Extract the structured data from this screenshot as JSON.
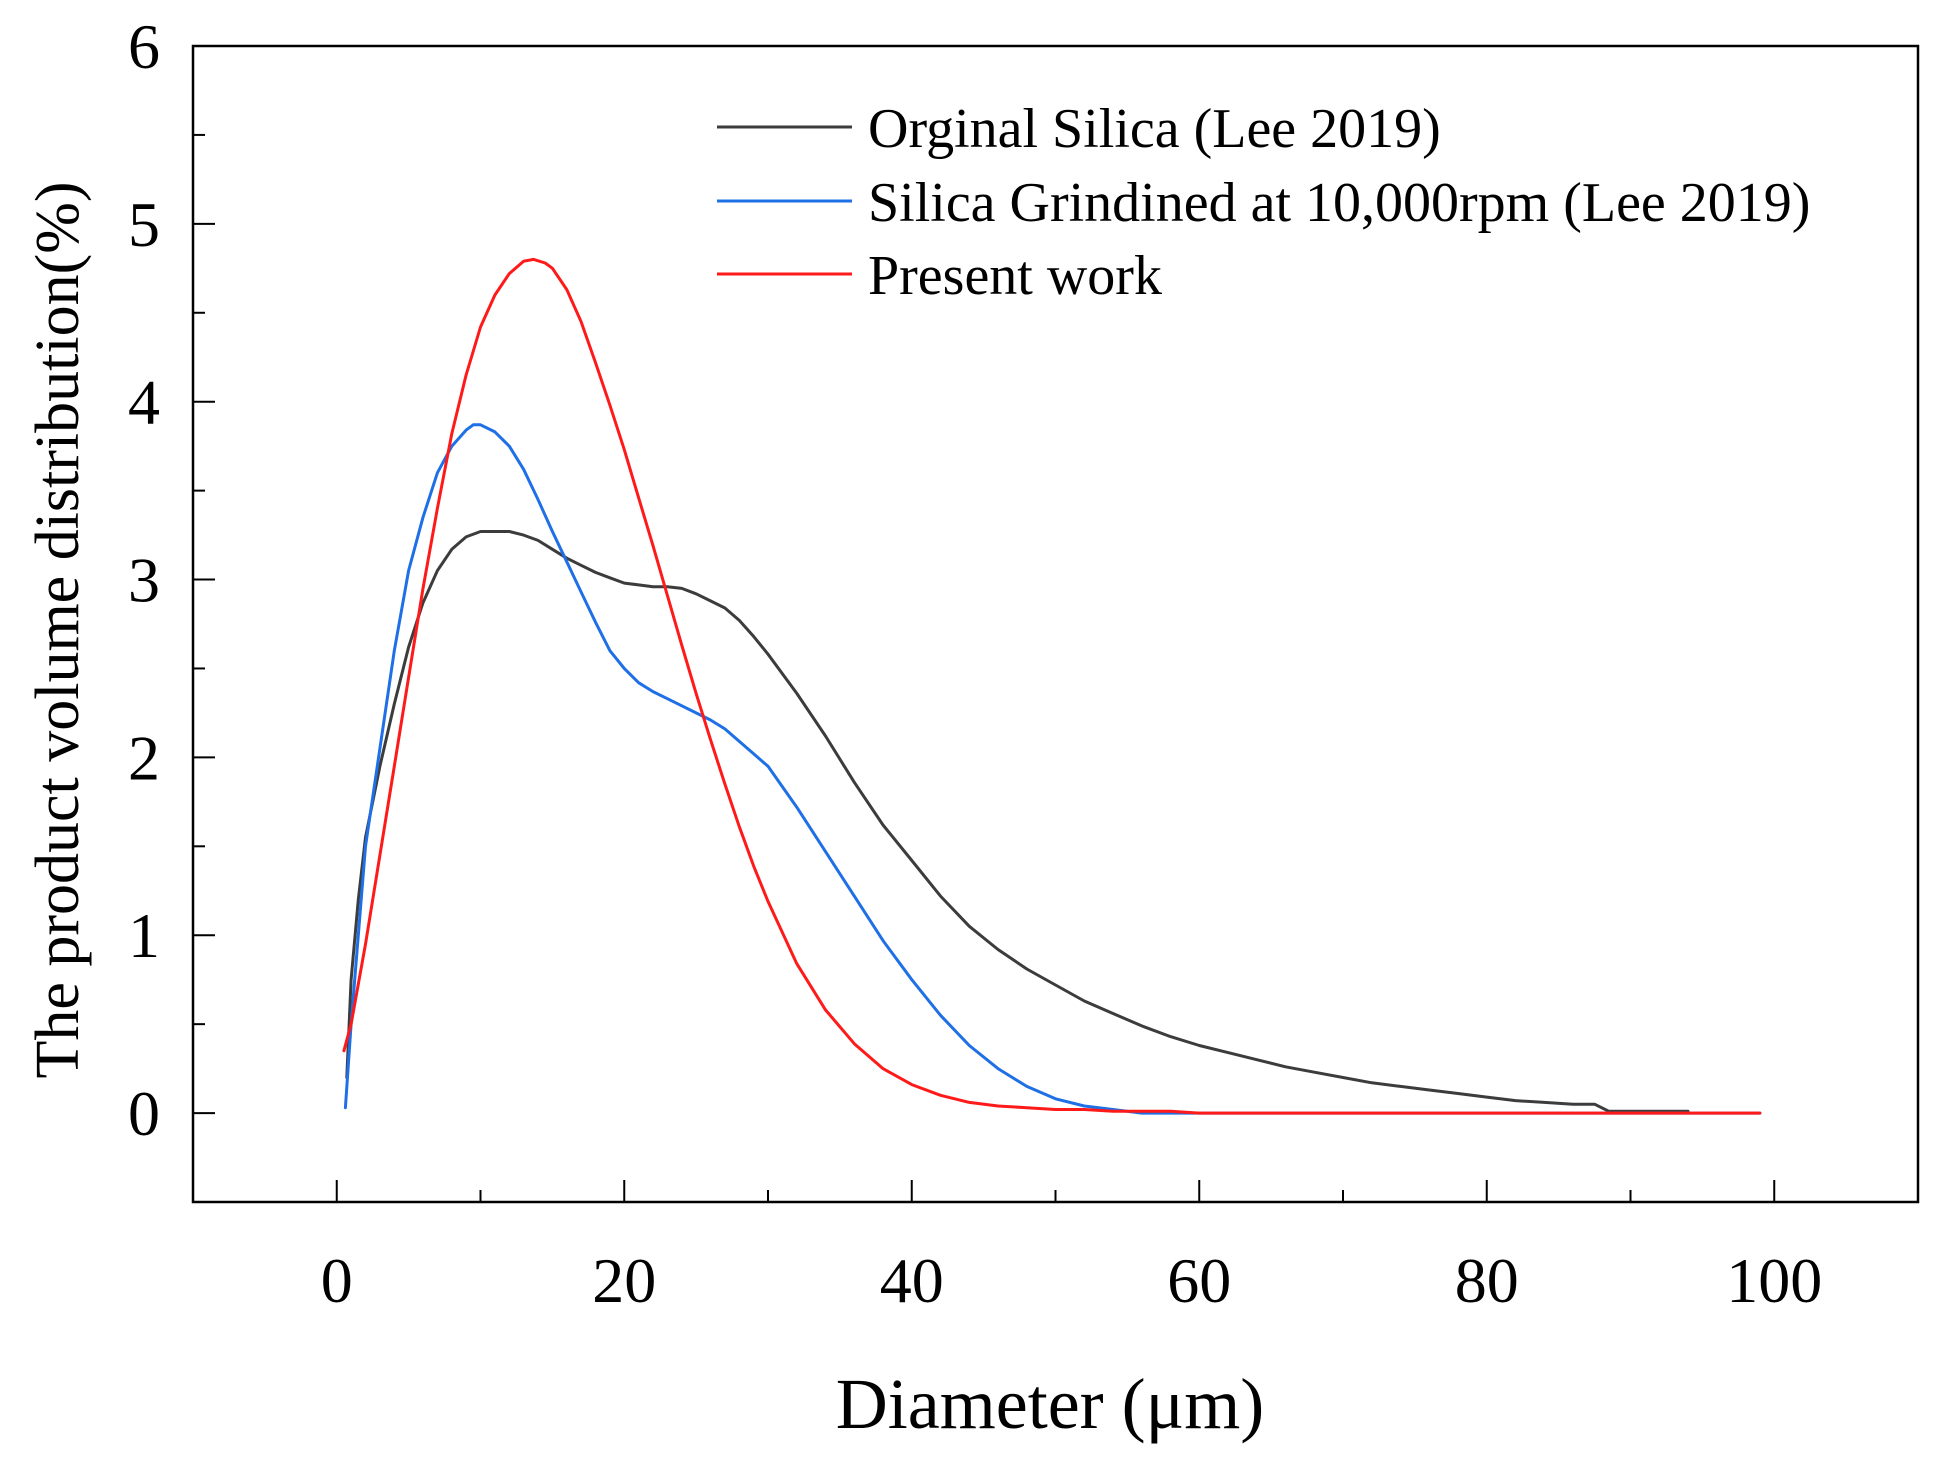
{
  "chart_data": {
    "type": "line",
    "title": "",
    "xlabel": "Diameter (μm)",
    "ylabel": "The product volume distribution(%)",
    "xlim": [
      -10,
      110
    ],
    "ylim": [
      -0.5,
      6
    ],
    "xticks": [
      0,
      20,
      40,
      60,
      80,
      100
    ],
    "xtick_labels": [
      "0",
      "20",
      "40",
      "60",
      "80",
      "100"
    ],
    "yticks": [
      0,
      1,
      2,
      3,
      4,
      5,
      6
    ],
    "ytick_labels": [
      "0",
      "1",
      "2",
      "3",
      "4",
      "5",
      "6"
    ],
    "grid": false,
    "legend_position": "top-right",
    "series": [
      {
        "name": "Orginal Silica (Lee 2019)",
        "color": "#3c3c3c",
        "x": [
          0.7,
          1.0,
          1.5,
          2,
          3,
          4,
          5,
          6,
          7,
          8,
          9,
          10,
          11,
          12,
          13,
          14,
          15,
          16,
          17,
          18,
          19,
          20,
          21,
          22,
          23,
          24,
          25,
          26,
          27,
          28,
          29,
          30,
          32,
          34,
          36,
          38,
          40,
          42,
          44,
          46,
          48,
          50,
          52,
          54,
          56,
          58,
          60,
          62,
          64,
          66,
          68,
          70,
          72,
          74,
          76,
          78,
          80,
          82,
          84,
          86,
          87.5,
          88.5,
          90,
          92,
          94
        ],
        "y": [
          0.2,
          0.75,
          1.2,
          1.55,
          1.95,
          2.3,
          2.62,
          2.87,
          3.05,
          3.17,
          3.24,
          3.27,
          3.27,
          3.27,
          3.25,
          3.22,
          3.17,
          3.12,
          3.08,
          3.04,
          3.01,
          2.98,
          2.97,
          2.96,
          2.96,
          2.95,
          2.92,
          2.88,
          2.84,
          2.77,
          2.68,
          2.58,
          2.36,
          2.12,
          1.86,
          1.62,
          1.42,
          1.22,
          1.05,
          0.92,
          0.81,
          0.72,
          0.63,
          0.56,
          0.49,
          0.43,
          0.38,
          0.34,
          0.3,
          0.26,
          0.23,
          0.2,
          0.17,
          0.15,
          0.13,
          0.11,
          0.09,
          0.07,
          0.06,
          0.05,
          0.05,
          0.01,
          0.01,
          0.01,
          0.01
        ]
      },
      {
        "name": "Silica Grindined at 10,000rpm (Lee 2019)",
        "color": "#1f6fe6",
        "x": [
          0.6,
          1.0,
          1.5,
          2,
          3,
          4,
          5,
          6,
          7,
          8,
          9,
          9.5,
          10,
          11,
          12,
          13,
          14,
          15,
          16,
          17,
          18,
          19,
          20,
          21,
          22,
          23,
          24,
          25,
          26,
          27,
          28,
          29,
          30,
          32,
          34,
          36,
          38,
          40,
          42,
          44,
          46,
          48,
          50,
          52,
          54,
          56,
          60,
          70,
          80,
          90,
          99
        ],
        "y": [
          0.03,
          0.5,
          1.0,
          1.5,
          2.05,
          2.6,
          3.05,
          3.35,
          3.6,
          3.75,
          3.84,
          3.87,
          3.87,
          3.83,
          3.75,
          3.62,
          3.45,
          3.27,
          3.1,
          2.93,
          2.76,
          2.6,
          2.5,
          2.42,
          2.37,
          2.33,
          2.29,
          2.25,
          2.21,
          2.16,
          2.09,
          2.02,
          1.95,
          1.72,
          1.47,
          1.22,
          0.97,
          0.75,
          0.55,
          0.38,
          0.25,
          0.15,
          0.08,
          0.04,
          0.02,
          0.0,
          0.0,
          0.0,
          0.0,
          0.0,
          0.0
        ]
      },
      {
        "name": "Present work",
        "color": "#ff1a1a",
        "x": [
          0.5,
          1,
          2,
          3,
          4,
          5,
          6,
          7,
          8,
          9,
          10,
          11,
          12,
          13,
          13.7,
          14.5,
          15,
          16,
          17,
          18,
          19,
          20,
          21,
          22,
          23,
          24,
          25,
          26,
          27,
          28,
          29,
          30,
          32,
          34,
          36,
          38,
          40,
          42,
          44,
          46,
          48,
          50,
          52,
          54,
          56,
          58,
          60,
          65,
          70,
          80,
          90,
          99
        ],
        "y": [
          0.35,
          0.5,
          0.95,
          1.45,
          1.95,
          2.45,
          2.95,
          3.4,
          3.82,
          4.15,
          4.42,
          4.6,
          4.72,
          4.79,
          4.8,
          4.78,
          4.75,
          4.63,
          4.45,
          4.22,
          3.98,
          3.73,
          3.46,
          3.19,
          2.91,
          2.63,
          2.36,
          2.1,
          1.85,
          1.61,
          1.39,
          1.19,
          0.84,
          0.58,
          0.39,
          0.25,
          0.16,
          0.1,
          0.06,
          0.04,
          0.03,
          0.02,
          0.02,
          0.01,
          0.01,
          0.01,
          0.0,
          0.0,
          0.0,
          0.0,
          0.0,
          0.0
        ]
      }
    ]
  }
}
